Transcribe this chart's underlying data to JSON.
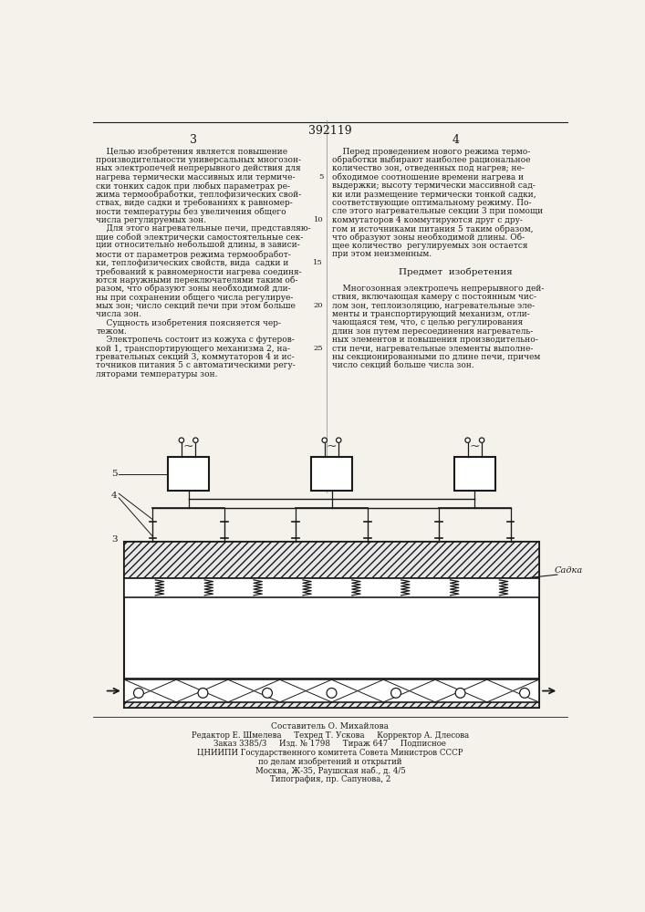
{
  "patent_number": "392119",
  "page_left": "3",
  "page_right": "4",
  "bg_color": "#f5f2ec",
  "text_color": "#1a1a1a",
  "left_col_text": [
    "    Целью изобретения является повышение",
    "производительности универсальных многозон-",
    "ных электропечей непрерывного действия для",
    "нагрева термически массивных или термиче-",
    "ски тонких садок при любых параметрах ре-",
    "жима термообработки, теплофизических свой-",
    "ствах, виде садки и требованиях к равномер-",
    "ности температуры без увеличения общего",
    "числа регулируемых зон.",
    "    Для этого нагревательные печи, представляю-",
    "щие собой электрически самостоятельные сек-",
    "ции относительно небольшой длины, в зависи-",
    "мости от параметров режима термообработ-",
    "ки, теплофизических свойств, вида  садки и",
    "требований к равномерности нагрева соединя-",
    "ются наружными переключателями таким об-",
    "разом, что образуют зоны необходимой дли-",
    "ны при сохранении общего числа регулируе-",
    "мых зон; число секций печи при этом больше",
    "числа зон.",
    "    Сущность изобретения поясняется чер-",
    "тежом.",
    "    Электропечь состоит из кожуха с футеров-",
    "кой 1, транспортирующего механизма 2, на-",
    "гревательных секций 3, коммутаторов 4 и ис-",
    "точников питания 5 с автоматическими регу-",
    "ляторами температуры зон."
  ],
  "right_col_text": [
    "    Перед проведением нового режима термо-",
    "обработки выбирают наиболее рациональное",
    "количество зон, отведенных под нагрев; не-",
    "обходимое соотношение времени нагрева и",
    "выдержки; высоту термически массивной сад-",
    "ки или размещение термически тонкой садки,",
    "соответствующие оптимальному режиму. По-",
    "сле этого нагревательные секции 3 при помощи",
    "коммутаторов 4 коммутируются друг с дру-",
    "гом и источниками питания 5 таким образом,",
    "что образуют зоны необходимой длины. Об-",
    "щее количество  регулируемых зон остается",
    "при этом неизменным.",
    "",
    "Предмет  изобретения",
    "",
    "    Многозонная электропечь непрерывного дей-",
    "ствия, включающая камеру с постоянным чис-",
    "лом зон, теплоизоляцию, нагревательные эле-",
    "менты и транспортирующий механизм, отли-",
    "чающаяся тем, что, с целью регулирования",
    "длин зон путем пересоединения нагреватель-",
    "ных элементов и повышения производительно-",
    "сти печи, нагревательные элементы выполне-",
    "ны секционированными по длине печи, причем",
    "число секций больше числа зон."
  ],
  "bottom_text": [
    "Составитель О. Михайлова",
    "Редактор Е. Шмелева     Техред Т. Ускова     Корректор А. Длесова",
    "Заказ 3385/3     Изд. № 1798     Тираж 647     Подписное",
    "ЦНИИПИ Государственного комитета Совета Министров СССР",
    "по делам изобретений и открытий",
    "Москва, Ж-35, Раушская наб., д. 4/5",
    "Типография, пр. Сапунова, 2"
  ],
  "line_numbers": [
    "5",
    "10",
    "15",
    "20",
    "25"
  ]
}
